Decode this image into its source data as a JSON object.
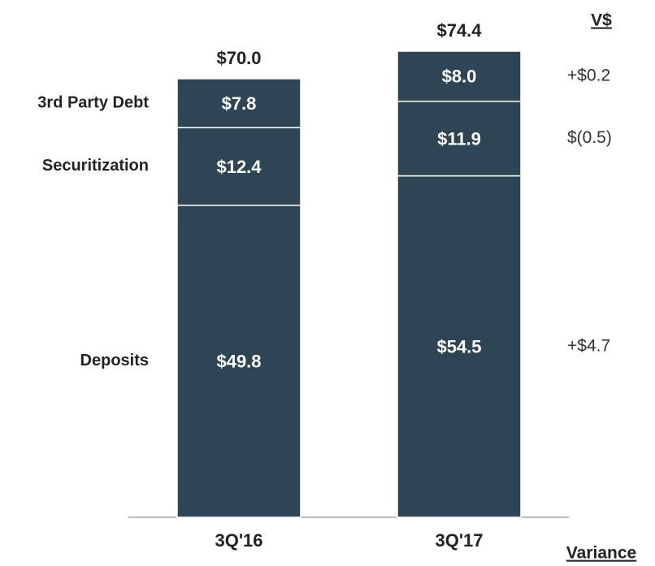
{
  "chart_data": {
    "type": "stacked_bar",
    "categories": [
      "3Q'16",
      "3Q'17"
    ],
    "series": [
      {
        "name": "Deposits",
        "color": "#2e4555",
        "values": [
          49.8,
          54.5
        ],
        "value_labels": [
          "$49.8",
          "$54.5"
        ]
      },
      {
        "name": "Securitization",
        "color": "#2e4555",
        "values": [
          12.4,
          11.9
        ],
        "value_labels": [
          "$12.4",
          "$11.9"
        ]
      },
      {
        "name": "3rd Party Debt",
        "color": "#2e4555",
        "values": [
          7.8,
          8.0
        ],
        "value_labels": [
          "$7.8",
          "$8.0"
        ]
      }
    ],
    "totals": [
      70.0,
      74.4
    ],
    "total_labels": [
      "$70.0",
      "$74.4"
    ],
    "variance": {
      "title": "V$",
      "label": "Variance",
      "values": [
        4.7,
        -0.5,
        0.2
      ],
      "value_labels": [
        "+$4.7",
        "$(0.5)",
        "+$0.2"
      ]
    }
  }
}
